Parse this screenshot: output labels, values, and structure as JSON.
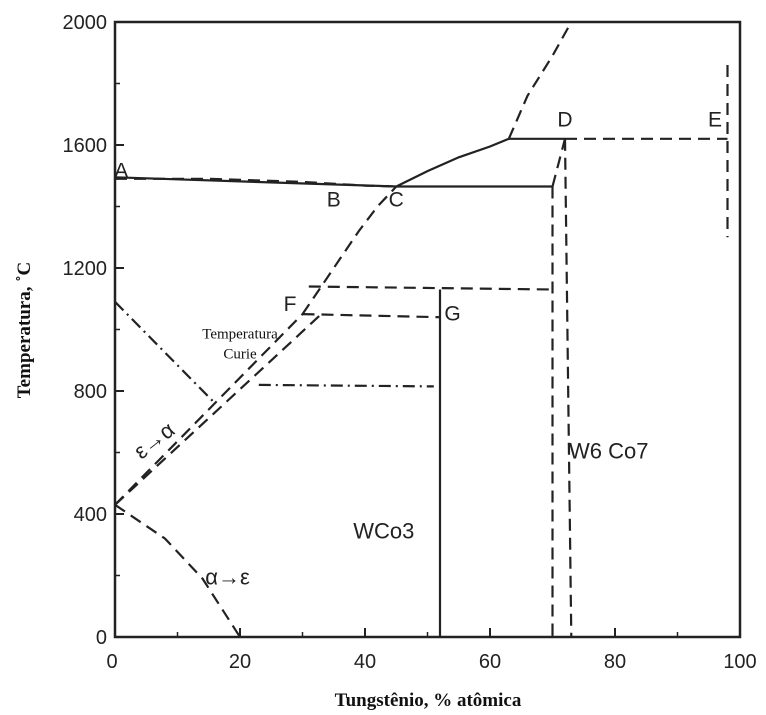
{
  "chart_data": {
    "type": "line",
    "xlabel": "Tungstênio, % atômica",
    "ylabel": "Temperatura, ˚C",
    "xlim": [
      0,
      100
    ],
    "ylim": [
      0,
      2000
    ],
    "x_ticks": [
      "0",
      "20",
      "40",
      "60",
      "80",
      "100"
    ],
    "y_ticks": [
      "0",
      "400",
      "800",
      "1200",
      "1600",
      "2000"
    ],
    "grid": false,
    "point_labels": [
      {
        "text": "A",
        "x": 1,
        "y": 1495
      },
      {
        "text": "B",
        "x": 35,
        "y": 1400
      },
      {
        "text": "C",
        "x": 45,
        "y": 1400
      },
      {
        "text": "D",
        "x": 72,
        "y": 1660
      },
      {
        "text": "E",
        "x": 96,
        "y": 1660
      },
      {
        "text": "F",
        "x": 28,
        "y": 1060
      },
      {
        "text": "G",
        "x": 54,
        "y": 1030
      }
    ],
    "phase_labels": [
      {
        "text": "WCo3",
        "x": 43,
        "y": 320
      },
      {
        "text": "W6 Co7",
        "x": 79,
        "y": 580
      }
    ],
    "annotations": [
      {
        "lines": [
          "Temperatura",
          "Curie"
        ],
        "x": 20,
        "y": 970
      },
      {
        "text": "ε→α",
        "x": 7,
        "y": 620
      },
      {
        "text": "α→ε",
        "x": 18,
        "y": 170
      }
    ],
    "series": [
      {
        "style": "solid",
        "x": [
          0,
          45,
          70
        ],
        "y": [
          1495,
          1465,
          1465
        ]
      },
      {
        "style": "dashed",
        "x": [
          0,
          15,
          30,
          40,
          45
        ],
        "y": [
          1490,
          1490,
          1480,
          1468,
          1465
        ]
      },
      {
        "style": "dashed",
        "x": [
          30,
          33,
          36,
          39,
          42,
          45
        ],
        "y": [
          1050,
          1140,
          1230,
          1320,
          1400,
          1465
        ]
      },
      {
        "style": "solid",
        "x": [
          45,
          50,
          55,
          60,
          63
        ],
        "y": [
          1465,
          1515,
          1560,
          1595,
          1620
        ]
      },
      {
        "style": "dashed",
        "x": [
          63,
          66,
          70,
          73
        ],
        "y": [
          1620,
          1760,
          1890,
          2000
        ]
      },
      {
        "style": "solid",
        "x": [
          63,
          72
        ],
        "y": [
          1620,
          1620
        ]
      },
      {
        "style": "dashed",
        "x": [
          72,
          98
        ],
        "y": [
          1620,
          1620
        ]
      },
      {
        "style": "dashed",
        "x": [
          98,
          98
        ],
        "y": [
          1860,
          1300
        ]
      },
      {
        "style": "dashed",
        "x": [
          70,
          72
        ],
        "y": [
          1465,
          1620
        ]
      },
      {
        "style": "dashed",
        "x": [
          70,
          70
        ],
        "y": [
          1465,
          0
        ]
      },
      {
        "style": "dashed",
        "x": [
          72,
          73
        ],
        "y": [
          1620,
          0
        ]
      },
      {
        "style": "dashed",
        "x": [
          31,
          70
        ],
        "y": [
          1140,
          1130
        ]
      },
      {
        "style": "dashed",
        "x": [
          30,
          52
        ],
        "y": [
          1050,
          1040
        ]
      },
      {
        "style": "solid",
        "x": [
          52,
          52
        ],
        "y": [
          1130,
          0
        ]
      },
      {
        "style": "dashed",
        "x": [
          0,
          30
        ],
        "y": [
          430,
          1050
        ]
      },
      {
        "style": "dashed",
        "x": [
          0,
          33
        ],
        "y": [
          430,
          1050
        ]
      },
      {
        "style": "dashdot",
        "x": [
          0,
          16
        ],
        "y": [
          1090,
          760
        ]
      },
      {
        "style": "dashdot",
        "x": [
          23,
          51
        ],
        "y": [
          820,
          815
        ]
      },
      {
        "style": "dashed",
        "x": [
          0,
          8,
          14,
          20
        ],
        "y": [
          430,
          320,
          190,
          0
        ]
      }
    ]
  }
}
